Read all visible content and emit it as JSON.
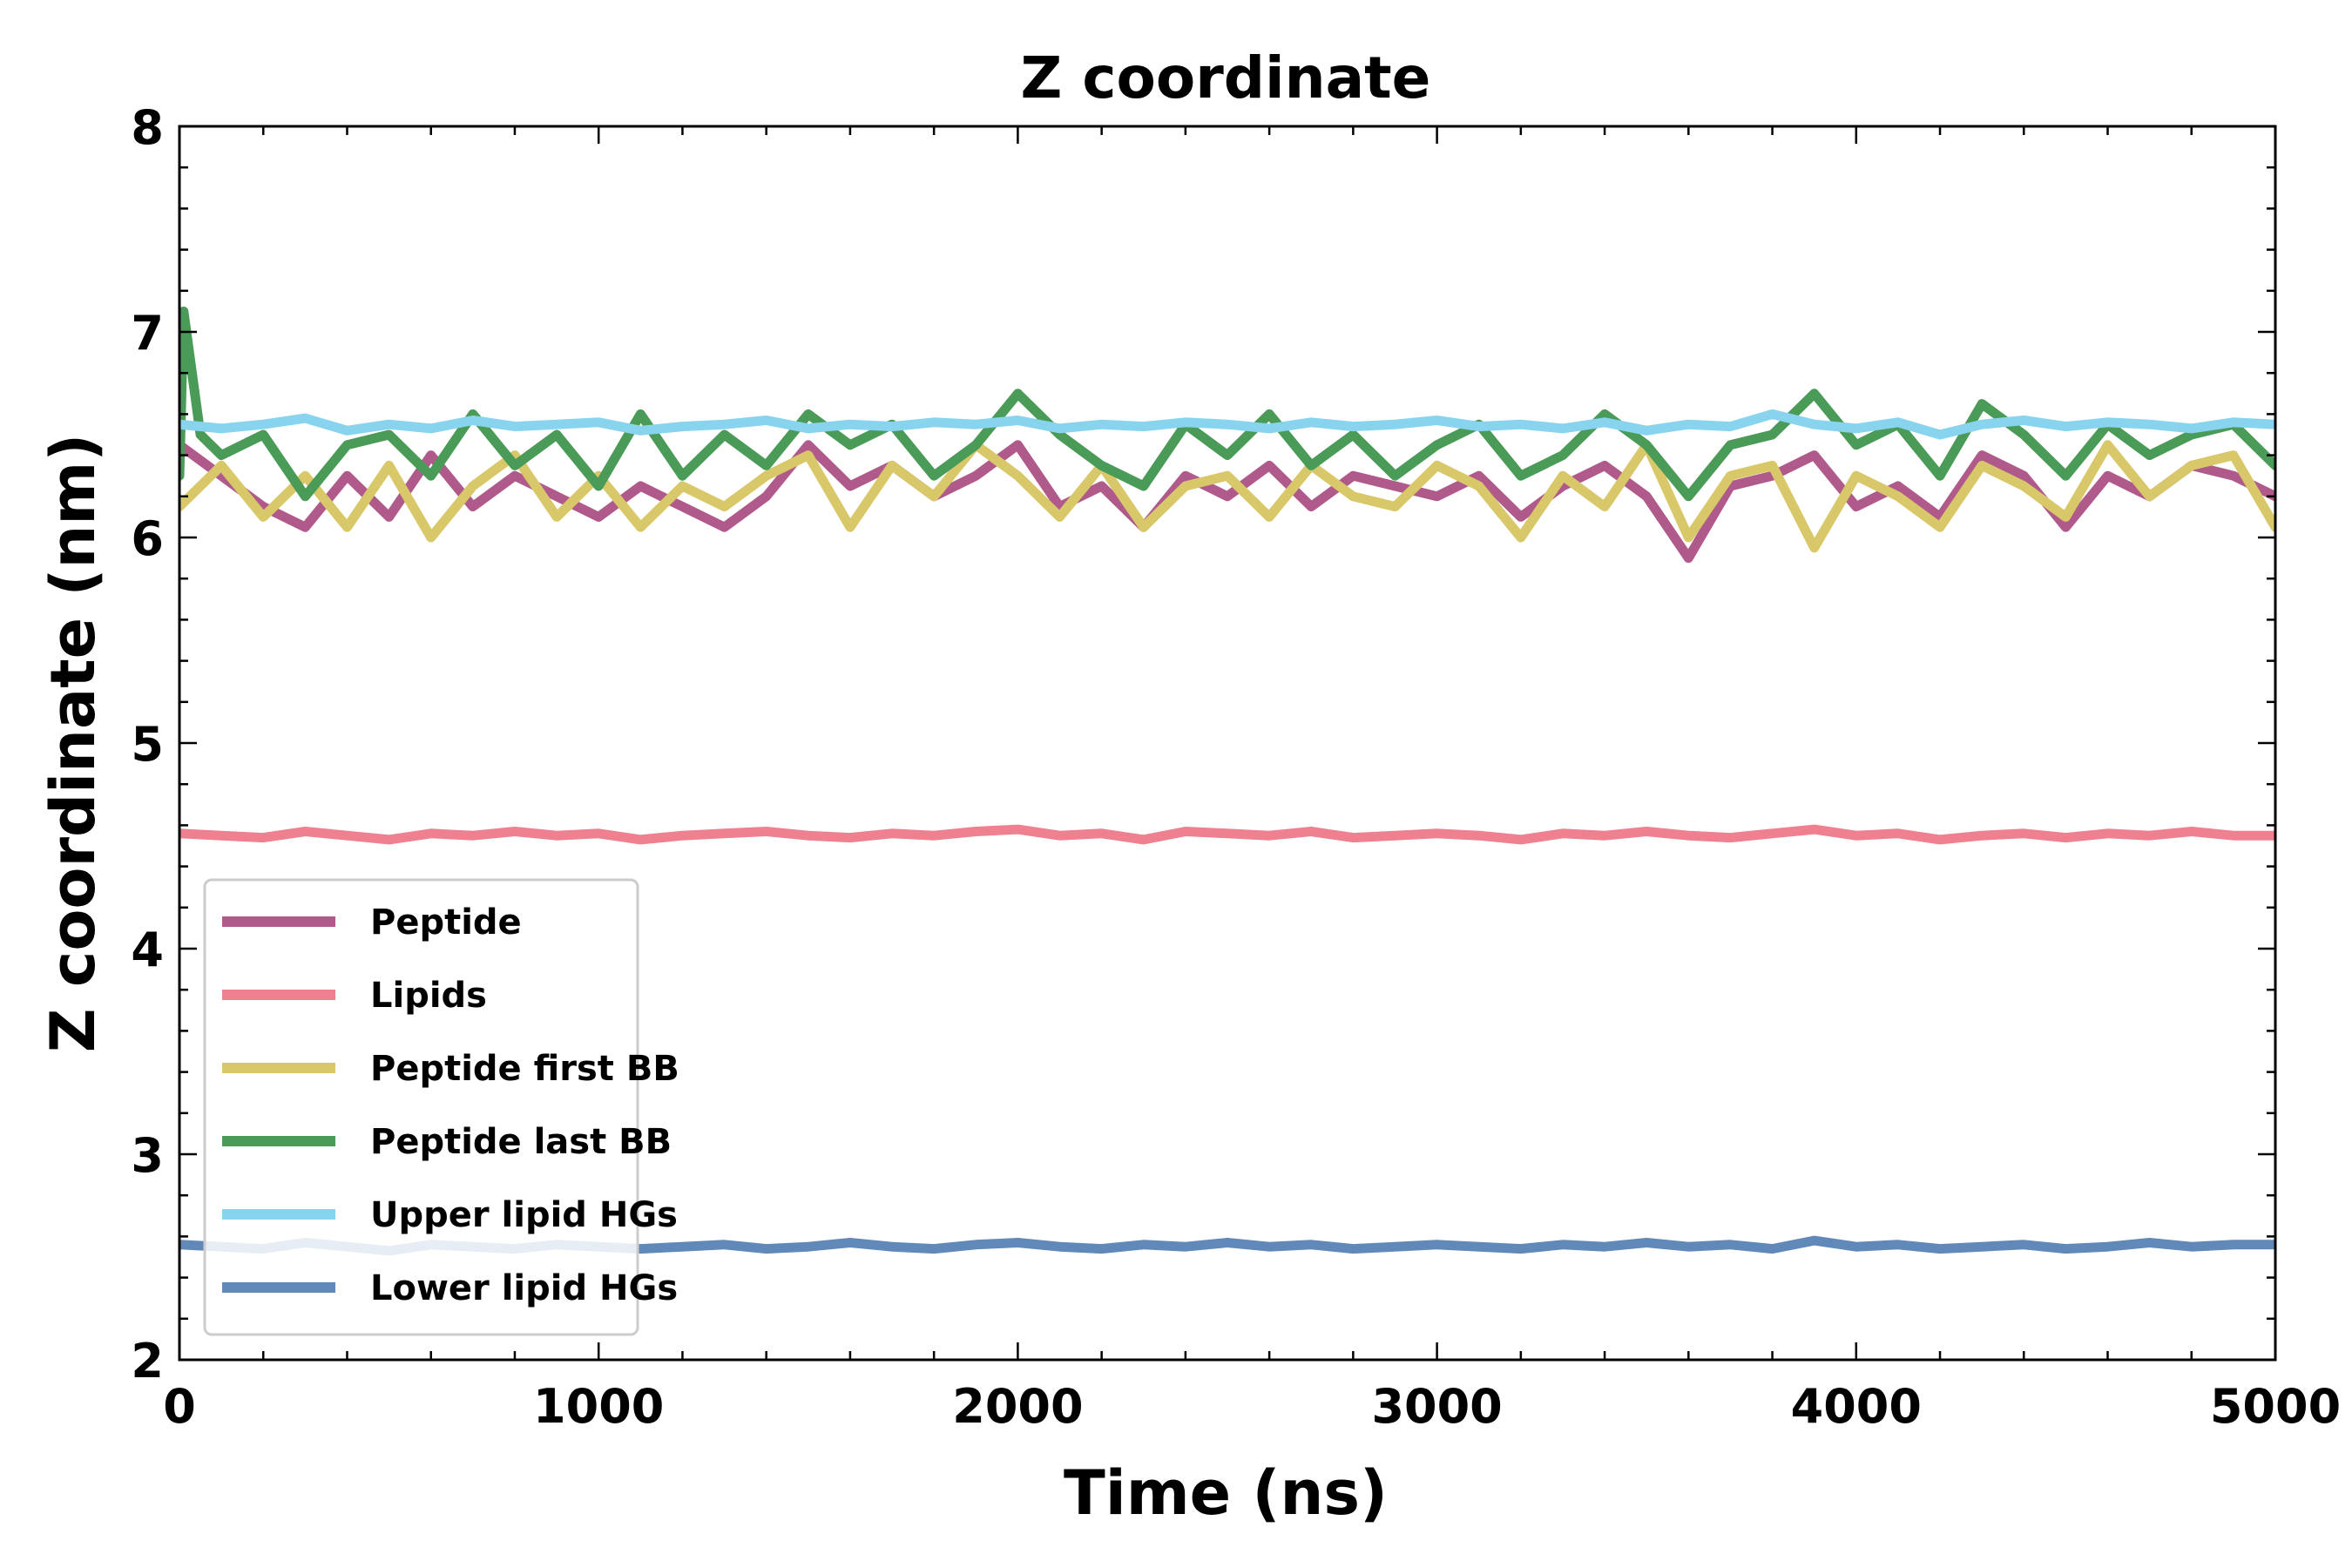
{
  "chart_data": {
    "type": "line",
    "title": "Z coordinate",
    "xlabel": "Time (ns)",
    "ylabel": "Z coordinate (nm)",
    "xlim": [
      0,
      5000
    ],
    "ylim": [
      2,
      8
    ],
    "xticks": [
      0,
      1000,
      2000,
      3000,
      4000,
      5000
    ],
    "yticks": [
      2,
      3,
      4,
      5,
      6,
      7,
      8
    ],
    "grid": false,
    "legend_position": "lower-left",
    "series": [
      {
        "name": "Peptide",
        "color": "#b05a8c",
        "x": [
          0,
          100,
          200,
          300,
          400,
          500,
          600,
          700,
          800,
          900,
          1000,
          1100,
          1200,
          1300,
          1400,
          1500,
          1600,
          1700,
          1800,
          1900,
          2000,
          2100,
          2200,
          2300,
          2400,
          2500,
          2600,
          2700,
          2800,
          2900,
          3000,
          3100,
          3200,
          3300,
          3400,
          3500,
          3600,
          3700,
          3800,
          3900,
          4000,
          4100,
          4200,
          4300,
          4400,
          4500,
          4600,
          4700,
          4800,
          4900,
          5000
        ],
        "y": [
          6.45,
          6.3,
          6.15,
          6.05,
          6.3,
          6.1,
          6.4,
          6.15,
          6.3,
          6.2,
          6.1,
          6.25,
          6.15,
          6.05,
          6.2,
          6.45,
          6.25,
          6.35,
          6.2,
          6.3,
          6.45,
          6.15,
          6.25,
          6.05,
          6.3,
          6.2,
          6.35,
          6.15,
          6.3,
          6.25,
          6.2,
          6.3,
          6.1,
          6.25,
          6.35,
          6.2,
          5.9,
          6.25,
          6.3,
          6.4,
          6.15,
          6.25,
          6.1,
          6.4,
          6.3,
          6.05,
          6.3,
          6.2,
          6.35,
          6.3,
          6.2
        ]
      },
      {
        "name": "Lipids",
        "color": "#ee8090",
        "x": [
          0,
          100,
          200,
          300,
          400,
          500,
          600,
          700,
          800,
          900,
          1000,
          1100,
          1200,
          1300,
          1400,
          1500,
          1600,
          1700,
          1800,
          1900,
          2000,
          2100,
          2200,
          2300,
          2400,
          2500,
          2600,
          2700,
          2800,
          2900,
          3000,
          3100,
          3200,
          3300,
          3400,
          3500,
          3600,
          3700,
          3800,
          3900,
          4000,
          4100,
          4200,
          4300,
          4400,
          4500,
          4600,
          4700,
          4800,
          4900,
          5000
        ],
        "y": [
          4.56,
          4.55,
          4.54,
          4.57,
          4.55,
          4.53,
          4.56,
          4.55,
          4.57,
          4.55,
          4.56,
          4.53,
          4.55,
          4.56,
          4.57,
          4.55,
          4.54,
          4.56,
          4.55,
          4.57,
          4.58,
          4.55,
          4.56,
          4.53,
          4.57,
          4.56,
          4.55,
          4.57,
          4.54,
          4.55,
          4.56,
          4.55,
          4.53,
          4.56,
          4.55,
          4.57,
          4.55,
          4.54,
          4.56,
          4.58,
          4.55,
          4.56,
          4.53,
          4.55,
          4.56,
          4.54,
          4.56,
          4.55,
          4.57,
          4.55,
          4.55
        ]
      },
      {
        "name": "Peptide first BB",
        "color": "#d8c86a",
        "x": [
          0,
          100,
          200,
          300,
          400,
          500,
          600,
          700,
          800,
          900,
          1000,
          1100,
          1200,
          1300,
          1400,
          1500,
          1600,
          1700,
          1800,
          1900,
          2000,
          2100,
          2200,
          2300,
          2400,
          2500,
          2600,
          2700,
          2800,
          2900,
          3000,
          3100,
          3200,
          3300,
          3400,
          3500,
          3600,
          3700,
          3800,
          3900,
          4000,
          4100,
          4200,
          4300,
          4400,
          4500,
          4600,
          4700,
          4800,
          4900,
          5000
        ],
        "y": [
          6.15,
          6.35,
          6.1,
          6.3,
          6.05,
          6.35,
          6.0,
          6.25,
          6.4,
          6.1,
          6.3,
          6.05,
          6.25,
          6.15,
          6.3,
          6.4,
          6.05,
          6.35,
          6.2,
          6.45,
          6.3,
          6.1,
          6.35,
          6.05,
          6.25,
          6.3,
          6.1,
          6.35,
          6.2,
          6.15,
          6.35,
          6.25,
          6.0,
          6.3,
          6.15,
          6.45,
          6.0,
          6.3,
          6.35,
          5.95,
          6.3,
          6.2,
          6.05,
          6.35,
          6.25,
          6.1,
          6.45,
          6.2,
          6.35,
          6.4,
          6.05
        ]
      },
      {
        "name": "Peptide last BB",
        "color": "#4a9a58",
        "x": [
          0,
          10,
          50,
          100,
          200,
          300,
          400,
          500,
          600,
          700,
          800,
          900,
          1000,
          1100,
          1200,
          1300,
          1400,
          1500,
          1600,
          1700,
          1800,
          1900,
          2000,
          2100,
          2200,
          2300,
          2400,
          2500,
          2600,
          2700,
          2800,
          2900,
          3000,
          3100,
          3200,
          3300,
          3400,
          3500,
          3600,
          3700,
          3800,
          3900,
          4000,
          4100,
          4200,
          4300,
          4400,
          4500,
          4600,
          4700,
          4800,
          4900,
          5000
        ],
        "y": [
          6.3,
          7.1,
          6.5,
          6.4,
          6.5,
          6.2,
          6.45,
          6.5,
          6.3,
          6.6,
          6.35,
          6.5,
          6.25,
          6.6,
          6.3,
          6.5,
          6.35,
          6.6,
          6.45,
          6.55,
          6.3,
          6.45,
          6.7,
          6.5,
          6.35,
          6.25,
          6.55,
          6.4,
          6.6,
          6.35,
          6.5,
          6.3,
          6.45,
          6.55,
          6.3,
          6.4,
          6.6,
          6.45,
          6.2,
          6.45,
          6.5,
          6.7,
          6.45,
          6.55,
          6.3,
          6.65,
          6.5,
          6.3,
          6.55,
          6.4,
          6.5,
          6.55,
          6.35
        ]
      },
      {
        "name": "Upper lipid HGs",
        "color": "#88d4ee",
        "x": [
          0,
          100,
          200,
          300,
          400,
          500,
          600,
          700,
          800,
          900,
          1000,
          1100,
          1200,
          1300,
          1400,
          1500,
          1600,
          1700,
          1800,
          1900,
          2000,
          2100,
          2200,
          2300,
          2400,
          2500,
          2600,
          2700,
          2800,
          2900,
          3000,
          3100,
          3200,
          3300,
          3400,
          3500,
          3600,
          3700,
          3800,
          3900,
          4000,
          4100,
          4200,
          4300,
          4400,
          4500,
          4600,
          4700,
          4800,
          4900,
          5000
        ],
        "y": [
          6.55,
          6.53,
          6.55,
          6.58,
          6.52,
          6.55,
          6.53,
          6.57,
          6.54,
          6.55,
          6.56,
          6.52,
          6.54,
          6.55,
          6.57,
          6.53,
          6.55,
          6.54,
          6.56,
          6.55,
          6.57,
          6.53,
          6.55,
          6.54,
          6.56,
          6.55,
          6.53,
          6.56,
          6.54,
          6.55,
          6.57,
          6.54,
          6.55,
          6.53,
          6.56,
          6.52,
          6.55,
          6.54,
          6.6,
          6.55,
          6.53,
          6.56,
          6.5,
          6.55,
          6.57,
          6.54,
          6.56,
          6.55,
          6.53,
          6.56,
          6.55
        ]
      },
      {
        "name": "Lower lipid HGs",
        "color": "#6088b8",
        "x": [
          0,
          100,
          200,
          300,
          400,
          500,
          600,
          700,
          800,
          900,
          1000,
          1100,
          1200,
          1300,
          1400,
          1500,
          1600,
          1700,
          1800,
          1900,
          2000,
          2100,
          2200,
          2300,
          2400,
          2500,
          2600,
          2700,
          2800,
          2900,
          3000,
          3100,
          3200,
          3300,
          3400,
          3500,
          3600,
          3700,
          3800,
          3900,
          4000,
          4100,
          4200,
          4300,
          4400,
          4500,
          4600,
          4700,
          4800,
          4900,
          5000
        ],
        "y": [
          2.56,
          2.55,
          2.54,
          2.57,
          2.55,
          2.53,
          2.56,
          2.55,
          2.54,
          2.56,
          2.55,
          2.54,
          2.55,
          2.56,
          2.54,
          2.55,
          2.57,
          2.55,
          2.54,
          2.56,
          2.57,
          2.55,
          2.54,
          2.56,
          2.55,
          2.57,
          2.55,
          2.56,
          2.54,
          2.55,
          2.56,
          2.55,
          2.54,
          2.56,
          2.55,
          2.57,
          2.55,
          2.56,
          2.54,
          2.58,
          2.55,
          2.56,
          2.54,
          2.55,
          2.56,
          2.54,
          2.55,
          2.57,
          2.55,
          2.56,
          2.56
        ]
      }
    ]
  }
}
